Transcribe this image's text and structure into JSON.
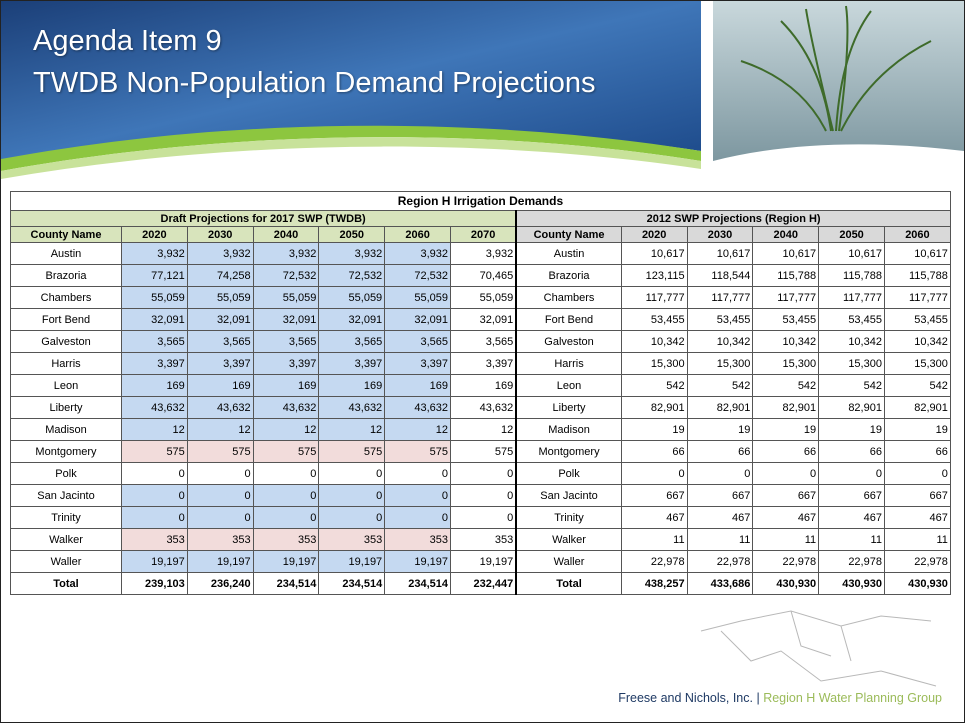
{
  "header": {
    "title_line1": "Agenda Item 9",
    "title_line2": "TWDB Non-Population Demand Projections"
  },
  "table": {
    "title": "Region H Irrigation Demands",
    "left": {
      "header": "Draft Projections for 2017 SWP (TWDB)",
      "columns": [
        "County Name",
        "2020",
        "2030",
        "2040",
        "2050",
        "2060",
        "2070"
      ],
      "rows": [
        [
          "Austin",
          "3,932",
          "3,932",
          "3,932",
          "3,932",
          "3,932",
          "3,932"
        ],
        [
          "Brazoria",
          "77,121",
          "74,258",
          "72,532",
          "72,532",
          "72,532",
          "70,465"
        ],
        [
          "Chambers",
          "55,059",
          "55,059",
          "55,059",
          "55,059",
          "55,059",
          "55,059"
        ],
        [
          "Fort Bend",
          "32,091",
          "32,091",
          "32,091",
          "32,091",
          "32,091",
          "32,091"
        ],
        [
          "Galveston",
          "3,565",
          "3,565",
          "3,565",
          "3,565",
          "3,565",
          "3,565"
        ],
        [
          "Harris",
          "3,397",
          "3,397",
          "3,397",
          "3,397",
          "3,397",
          "3,397"
        ],
        [
          "Leon",
          "169",
          "169",
          "169",
          "169",
          "169",
          "169"
        ],
        [
          "Liberty",
          "43,632",
          "43,632",
          "43,632",
          "43,632",
          "43,632",
          "43,632"
        ],
        [
          "Madison",
          "12",
          "12",
          "12",
          "12",
          "12",
          "12"
        ],
        [
          "Montgomery",
          "575",
          "575",
          "575",
          "575",
          "575",
          "575"
        ],
        [
          "Polk",
          "0",
          "0",
          "0",
          "0",
          "0",
          "0"
        ],
        [
          "San Jacinto",
          "0",
          "0",
          "0",
          "0",
          "0",
          "0"
        ],
        [
          "Trinity",
          "0",
          "0",
          "0",
          "0",
          "0",
          "0"
        ],
        [
          "Walker",
          "353",
          "353",
          "353",
          "353",
          "353",
          "353"
        ],
        [
          "Waller",
          "19,197",
          "19,197",
          "19,197",
          "19,197",
          "19,197",
          "19,197"
        ],
        [
          "Total",
          "239,103",
          "236,240",
          "234,514",
          "234,514",
          "234,514",
          "232,447"
        ]
      ]
    },
    "right": {
      "header": "2012 SWP Projections (Region H)",
      "columns": [
        "County Name",
        "2020",
        "2030",
        "2040",
        "2050",
        "2060"
      ],
      "rows": [
        [
          "Austin",
          "10,617",
          "10,617",
          "10,617",
          "10,617",
          "10,617"
        ],
        [
          "Brazoria",
          "123,115",
          "118,544",
          "115,788",
          "115,788",
          "115,788"
        ],
        [
          "Chambers",
          "117,777",
          "117,777",
          "117,777",
          "117,777",
          "117,777"
        ],
        [
          "Fort Bend",
          "53,455",
          "53,455",
          "53,455",
          "53,455",
          "53,455"
        ],
        [
          "Galveston",
          "10,342",
          "10,342",
          "10,342",
          "10,342",
          "10,342"
        ],
        [
          "Harris",
          "15,300",
          "15,300",
          "15,300",
          "15,300",
          "15,300"
        ],
        [
          "Leon",
          "542",
          "542",
          "542",
          "542",
          "542"
        ],
        [
          "Liberty",
          "82,901",
          "82,901",
          "82,901",
          "82,901",
          "82,901"
        ],
        [
          "Madison",
          "19",
          "19",
          "19",
          "19",
          "19"
        ],
        [
          "Montgomery",
          "66",
          "66",
          "66",
          "66",
          "66"
        ],
        [
          "Polk",
          "0",
          "0",
          "0",
          "0",
          "0"
        ],
        [
          "San Jacinto",
          "667",
          "667",
          "667",
          "667",
          "667"
        ],
        [
          "Trinity",
          "467",
          "467",
          "467",
          "467",
          "467"
        ],
        [
          "Walker",
          "11",
          "11",
          "11",
          "11",
          "11"
        ],
        [
          "Waller",
          "22,978",
          "22,978",
          "22,978",
          "22,978",
          "22,978"
        ],
        [
          "Total",
          "438,257",
          "433,686",
          "430,930",
          "430,930",
          "430,930"
        ]
      ]
    }
  },
  "footer": {
    "company": "Freese and Nichols, Inc.",
    "separator": "|",
    "group": "Region H Water Planning Group"
  }
}
